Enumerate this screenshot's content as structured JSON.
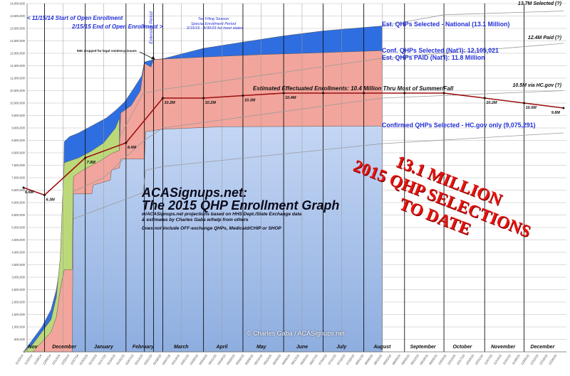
{
  "chart_data": {
    "type": "area",
    "title": "ACASignups.net:",
    "subtitle": "The 2015 QHP Enrollment Graph",
    "notes": [
      "w/ACASignups.net projections based on HHS Dept./State Exchange data",
      "& estimates by Charles Gaba w/help from others",
      "Does not include OFF-exchange QHPs, Medicaid/CHIP or SHOP"
    ],
    "credit": "© Charles Gaba / ACASignups.net",
    "ylim": [
      0,
      14000000
    ],
    "y_ticks": [
      "0",
      "500,000",
      "1,000,000",
      "1,500,000",
      "2,000,000",
      "2,500,000",
      "3,000,000",
      "3,500,000",
      "4,000,000",
      "4,500,000",
      "5,000,000",
      "5,500,000",
      "6,000,000",
      "6,500,000",
      "7,000,000",
      "7,500,000",
      "8,000,000",
      "8,500,000",
      "9,000,000",
      "9,500,000",
      "10,000,000",
      "10,500,000",
      "11,000,000",
      "11,500,000",
      "12,000,000",
      "12,500,000",
      "13,000,000",
      "13,500,000",
      "14,000,000"
    ],
    "xlim": [
      "11/15/14",
      "12/31/15"
    ],
    "x_ticks": [
      "11/15/14",
      "11/22/14",
      "11/29/14",
      "12/06/14",
      "12/13/14",
      "12/20/14",
      "12/27/14",
      "01/03/15",
      "01/10/15",
      "01/17/15",
      "01/24/15",
      "01/31/15",
      "02/07/15",
      "02/14/15",
      "02/21/15",
      "02/28/15",
      "03/07/15",
      "03/14/15",
      "03/21/15",
      "03/28/15",
      "04/04/15",
      "04/11/15",
      "04/18/15",
      "04/25/15",
      "05/02/15",
      "05/09/15",
      "05/16/15",
      "05/23/15",
      "05/30/15",
      "06/06/15",
      "06/13/15",
      "06/20/15",
      "06/27/15",
      "07/04/15",
      "07/11/15",
      "07/18/15",
      "07/25/15",
      "08/01/15",
      "08/08/15",
      "08/15/15",
      "08/22/15",
      "08/29/15",
      "09/05/15",
      "09/12/15",
      "09/19/15",
      "09/26/15",
      "10/03/15",
      "10/10/15",
      "10/17/15",
      "10/24/15",
      "10/31/15",
      "11/07/15",
      "11/14/15",
      "11/21/15",
      "11/28/15",
      "12/05/15",
      "12/12/15",
      "12/19/15",
      "12/26/15"
    ],
    "months": [
      {
        "label": "Nov",
        "date": "11/22/14"
      },
      {
        "label": "December",
        "date": "12/16/14"
      },
      {
        "label": "January",
        "date": "01/15/15"
      },
      {
        "label": "February",
        "date": "02/14/15"
      },
      {
        "label": "March",
        "date": "03/15/15"
      },
      {
        "label": "April",
        "date": "04/15/15"
      },
      {
        "label": "May",
        "date": "05/15/15"
      },
      {
        "label": "June",
        "date": "06/15/15"
      },
      {
        "label": "July",
        "date": "07/15/15"
      },
      {
        "label": "August",
        "date": "08/15/15"
      },
      {
        "label": "September",
        "date": "09/15/15"
      },
      {
        "label": "October",
        "date": "10/15/15"
      },
      {
        "label": "November",
        "date": "11/15/15"
      },
      {
        "label": "December",
        "date": "12/15/15"
      }
    ],
    "grid": true,
    "colors": {
      "national": "#2f6ee0",
      "green": "#bcd97a",
      "confirmed_national": "#f2a59c",
      "hcgov": "#b4cbf0",
      "effectuated": "#9b1010",
      "projection": "#9a9a9a",
      "annotation": "#2230d8",
      "stamp": "#e8120c"
    },
    "areas": [
      {
        "name": "Est. QHPs Selected - National (13.1 Million)",
        "color_key": "national",
        "points": [
          [
            "11/15/14",
            0
          ],
          [
            "11/22/14",
            500000
          ],
          [
            "11/29/14",
            1000000
          ],
          [
            "12/06/14",
            1700000
          ],
          [
            "12/10/14",
            2500000
          ],
          [
            "12/13/14",
            3500000
          ],
          [
            "12/15/14",
            5000000
          ],
          [
            "12/16/14",
            8450000
          ],
          [
            "12/20/14",
            8650000
          ],
          [
            "12/27/14",
            8800000
          ],
          [
            "01/03/15",
            9000000
          ],
          [
            "01/10/15",
            9200000
          ],
          [
            "01/17/15",
            9400000
          ],
          [
            "01/24/15",
            9700000
          ],
          [
            "01/31/15",
            10050000
          ],
          [
            "02/07/15",
            10600000
          ],
          [
            "02/13/15",
            11100000
          ],
          [
            "02/15/15",
            11650000
          ],
          [
            "02/22/15",
            11750000
          ],
          [
            "03/01/15",
            11780000
          ],
          [
            "04/01/15",
            12200000
          ],
          [
            "05/01/15",
            12450000
          ],
          [
            "06/01/15",
            12700000
          ],
          [
            "07/01/15",
            12900000
          ],
          [
            "08/15/15",
            13100000
          ]
        ]
      },
      {
        "name": "",
        "color_key": "green",
        "points": [
          [
            "11/15/14",
            0
          ],
          [
            "11/22/14",
            300000
          ],
          [
            "11/29/14",
            800000
          ],
          [
            "12/06/14",
            1300000
          ],
          [
            "12/10/14",
            2200000
          ],
          [
            "12/13/14",
            3800000
          ],
          [
            "12/15/14",
            6500000
          ],
          [
            "12/16/14",
            7600000
          ],
          [
            "12/27/14",
            7800000
          ],
          [
            "01/05/15",
            8050000
          ],
          [
            "01/15/15",
            8400000
          ],
          [
            "01/24/15",
            9000000
          ],
          [
            "01/27/15",
            9400000
          ]
        ]
      },
      {
        "name": "Conf. QHPs Selected (Nat'l): 12,105,021",
        "color_key": "confirmed_national",
        "points": [
          [
            "11/22/14",
            0
          ],
          [
            "11/29/14",
            400000
          ],
          [
            "12/06/14",
            800000
          ],
          [
            "12/10/14",
            1400000
          ],
          [
            "12/13/14",
            2500000
          ],
          [
            "12/16/14",
            3300000
          ],
          [
            "12/22/14",
            3300000
          ],
          [
            "12/23/14",
            7050000
          ],
          [
            "12/30/14",
            7300000
          ],
          [
            "01/06/15",
            7500000
          ],
          [
            "01/13/15",
            7700000
          ],
          [
            "01/20/15",
            7950000
          ],
          [
            "01/27/15",
            8100000
          ],
          [
            "01/28/15",
            9600000
          ],
          [
            "02/05/15",
            9900000
          ],
          [
            "02/12/15",
            10500000
          ],
          [
            "02/15/15",
            11600000
          ],
          [
            "02/20/15",
            11450000
          ],
          [
            "02/22/15",
            11750000
          ],
          [
            "04/01/15",
            11850000
          ],
          [
            "05/15/15",
            11950000
          ],
          [
            "06/15/15",
            12000000
          ],
          [
            "08/15/15",
            12105021
          ]
        ]
      },
      {
        "name": "Confirmed QHPs Selected - HC.gov only (9,075,291)",
        "color_key": "hcgov",
        "points": [
          [
            "12/22/14",
            0
          ],
          [
            "12/23/14",
            6350000
          ],
          [
            "01/06/15",
            6350000
          ],
          [
            "01/07/15",
            6700000
          ],
          [
            "01/20/15",
            6900000
          ],
          [
            "01/21/15",
            7300000
          ],
          [
            "01/27/15",
            7400000
          ],
          [
            "01/28/15",
            7750000
          ],
          [
            "02/15/15",
            7750000
          ],
          [
            "02/16/15",
            8850000
          ],
          [
            "03/01/15",
            8950000
          ],
          [
            "04/15/15",
            9050000
          ],
          [
            "08/15/15",
            9075291
          ]
        ]
      }
    ],
    "projection_lines": [
      {
        "name": "13.7M Selected (?)",
        "points": [
          [
            "08/15/15",
            13100000
          ],
          [
            "10/01/15",
            13550000
          ],
          [
            "12/31/15",
            13700000
          ]
        ]
      },
      {
        "name": "Est. QHPs PAID (Nat'l): 11.8 Million",
        "end_label": "12.4M Paid (?)",
        "points": [
          [
            "01/28/15",
            8700000
          ],
          [
            "02/14/15",
            10400000
          ],
          [
            "03/01/15",
            10550000
          ],
          [
            "08/15/15",
            11800000
          ],
          [
            "12/31/15",
            12400000
          ]
        ]
      },
      {
        "name": "10.5M via HC.gov (?)",
        "points": [
          [
            "12/23/14",
            6450000
          ],
          [
            "01/15/15",
            7000000
          ],
          [
            "01/27/15",
            7600000
          ],
          [
            "02/15/15",
            8500000
          ],
          [
            "03/01/15",
            9000000
          ],
          [
            "08/15/15",
            10200000
          ],
          [
            "12/31/15",
            10500000
          ]
        ]
      },
      {
        "name": "",
        "points": [
          [
            "12/23/14",
            5350000
          ],
          [
            "02/14/15",
            6400000
          ],
          [
            "02/16/15",
            7300000
          ],
          [
            "03/01/15",
            7450000
          ],
          [
            "08/15/15",
            8370000
          ],
          [
            "12/31/15",
            8800000
          ]
        ]
      }
    ],
    "effectuated": {
      "name": "Estimated Effectuated Enrollments: 10.4 Million Thru Most of Summer/Fall",
      "points": [
        [
          "11/15/14",
          6600000,
          "6.6M"
        ],
        [
          "12/01/14",
          6300000,
          "6.3M"
        ],
        [
          "01/01/15",
          7800000,
          "7.8M"
        ],
        [
          "02/01/15",
          8400000,
          "8.4M"
        ],
        [
          "03/01/15",
          10200000,
          "10.2M"
        ],
        [
          "04/01/15",
          10200000,
          "10.2M"
        ],
        [
          "05/01/15",
          10300000,
          "10.3M"
        ],
        [
          "06/01/15",
          10400000,
          "10.4M"
        ],
        [
          "07/01/15",
          10400000,
          ""
        ],
        [
          "08/01/15",
          10400000,
          ""
        ],
        [
          "09/01/15",
          10400000,
          ""
        ],
        [
          "10/01/15",
          10400000,
          ""
        ],
        [
          "11/01/15",
          10200000,
          "10.2M"
        ],
        [
          "12/01/15",
          10000000,
          "10.0M"
        ],
        [
          "12/31/15",
          9800000,
          "9.8M"
        ]
      ]
    },
    "annotations": {
      "start": "< 11/15/14 Start of Open Enrollment",
      "end": "2/15/15 End of Open Enrollment >",
      "extension": "Extension Period",
      "tax1": "Tax Filing Season",
      "tax2": "Special Enrollment Period",
      "tax3": "2/15/15 - 4/30/15 for most states",
      "dropped": "90K dropped for legal residency issues"
    },
    "stamp": [
      "13.1 MILLION",
      "2015 QHP SELECTIONS",
      "TO DATE"
    ]
  }
}
